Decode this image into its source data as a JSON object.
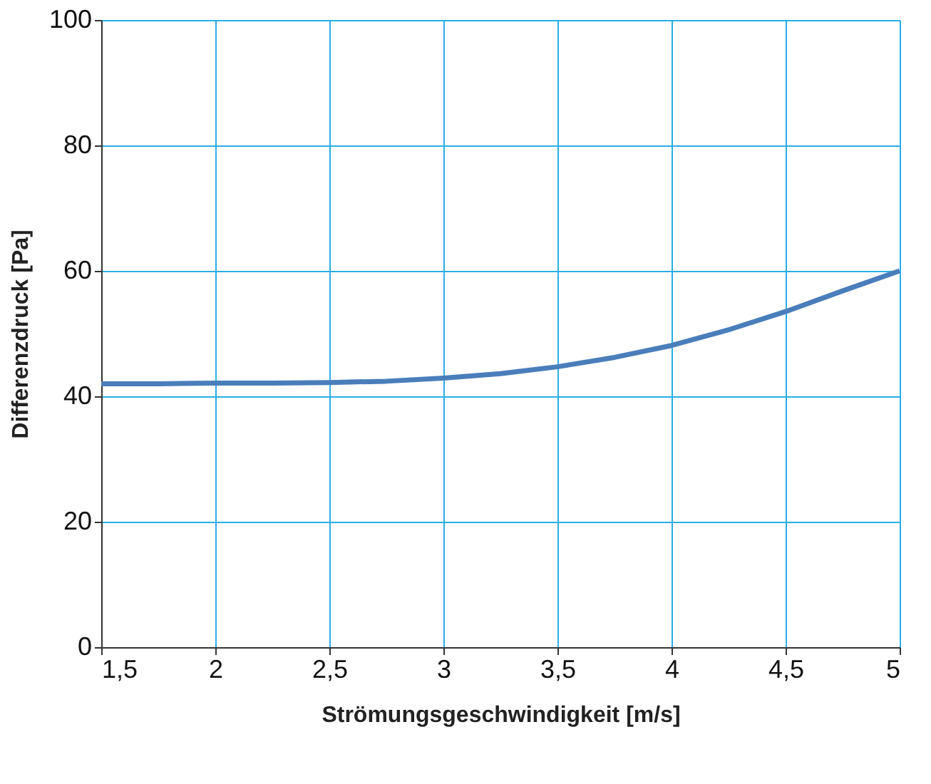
{
  "chart_data": {
    "type": "line",
    "xlabel": "Strömungsgeschwindigkeit [m/s]",
    "ylabel": "Differenzdruck [Pa]",
    "x": [
      1.5,
      1.75,
      2,
      2.25,
      2.5,
      2.75,
      3,
      3.25,
      3.5,
      3.75,
      4,
      4.25,
      4.5,
      4.75,
      5
    ],
    "series": [
      {
        "color": "#4a7ebb",
        "values": [
          42.0,
          42.0,
          42.1,
          42.1,
          42.2,
          42.4,
          42.9,
          43.6,
          44.7,
          46.2,
          48.1,
          50.6,
          53.5,
          56.8,
          60.0
        ]
      }
    ],
    "xlim": [
      1.5,
      5
    ],
    "xticks": [
      {
        "value": 1.5,
        "label": "1,5"
      },
      2,
      {
        "value": 2.5,
        "label": "2,5"
      },
      3,
      {
        "value": 3.5,
        "label": "3,5"
      },
      4,
      {
        "value": 4.5,
        "label": "4,5"
      },
      5
    ],
    "ylim": [
      0,
      100
    ],
    "yticks": [
      0,
      20,
      40,
      60,
      80,
      100
    ],
    "grid": true,
    "legend": false,
    "marker": "none",
    "line_style": "solid"
  }
}
